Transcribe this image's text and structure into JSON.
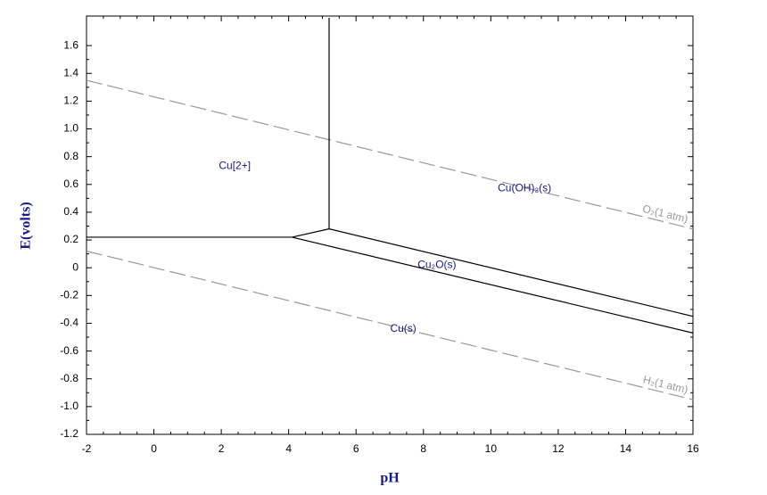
{
  "chart_data": {
    "type": "line",
    "xlabel": "pH",
    "ylabel": "E(volts)",
    "xlim": [
      -2,
      16
    ],
    "xticks": [
      -2,
      0,
      2,
      4,
      6,
      8,
      10,
      12,
      14,
      16
    ],
    "ylim": [
      -1.2,
      1.8
    ],
    "yticks": [
      -1.2,
      {
        "value": -1,
        "label": "-1.0"
      },
      -0.8,
      -0.6,
      -0.4,
      -0.2,
      0,
      0.2,
      0.4,
      0.6,
      0.8,
      {
        "value": 1,
        "label": "1.0"
      },
      1.2,
      1.4,
      1.6
    ],
    "series": [
      {
        "name": "O₂(1 atm)",
        "color": "#999999",
        "dashed": true,
        "x": [
          -2,
          16
        ],
        "values": [
          1.35,
          0.28
        ]
      },
      {
        "name": "H₂(1 atm)",
        "color": "#999999",
        "dashed": true,
        "x": [
          -2,
          16
        ],
        "values": [
          0.12,
          -0.95
        ]
      },
      {
        "color": "#000000",
        "x": [
          -2,
          4.1
        ],
        "values": [
          0.22,
          0.22
        ]
      },
      {
        "color": "#000000",
        "x": [
          5.2,
          5.2
        ],
        "values": [
          0.28,
          1.8
        ]
      },
      {
        "color": "#000000",
        "x": [
          4.1,
          5.2
        ],
        "values": [
          0.22,
          0.28
        ]
      },
      {
        "color": "#000000",
        "x": [
          5.2,
          16
        ],
        "values": [
          0.28,
          -0.35
        ]
      },
      {
        "color": "#000000",
        "x": [
          4.1,
          16
        ],
        "values": [
          0.22,
          -0.47
        ]
      }
    ],
    "annotations": [
      "Cu[2+]",
      "Cu(OH)₂(s)",
      "Cu₂O(s)",
      "Cu(s)"
    ]
  }
}
